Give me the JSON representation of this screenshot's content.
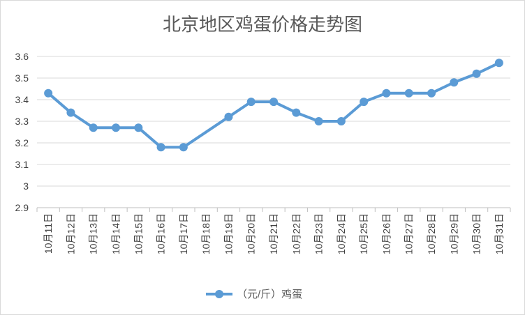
{
  "chart_data": {
    "type": "line",
    "title": "北京地区鸡蛋价格走势图",
    "xlabel": "",
    "ylabel": "",
    "categories": [
      "10月11日",
      "10月12日",
      "10月13日",
      "10月14日",
      "10月15日",
      "10月16日",
      "10月17日",
      "10月18日",
      "10月19日",
      "10月20日",
      "10月21日",
      "10月22日",
      "10月23日",
      "10月24日",
      "10月25日",
      "10月26日",
      "10月27日",
      "10月28日",
      "10月29日",
      "10月30日",
      "10月31日"
    ],
    "series": [
      {
        "name": "（元/斤）鸡蛋",
        "values": [
          3.43,
          3.34,
          3.27,
          3.27,
          3.27,
          3.18,
          3.18,
          null,
          3.32,
          3.39,
          3.39,
          3.34,
          3.3,
          3.3,
          3.39,
          3.43,
          3.43,
          3.43,
          3.48,
          3.52,
          3.57
        ]
      }
    ],
    "ylim": [
      2.9,
      3.6
    ],
    "yticks": [
      "2.9",
      "3",
      "3.1",
      "3.2",
      "3.3",
      "3.4",
      "3.5",
      "3.6"
    ],
    "grid": true,
    "legend_position": "bottom"
  },
  "colors": {
    "line": "#5b9bd5",
    "grid": "#d9d9d9",
    "axis": "#bfbfbf"
  }
}
